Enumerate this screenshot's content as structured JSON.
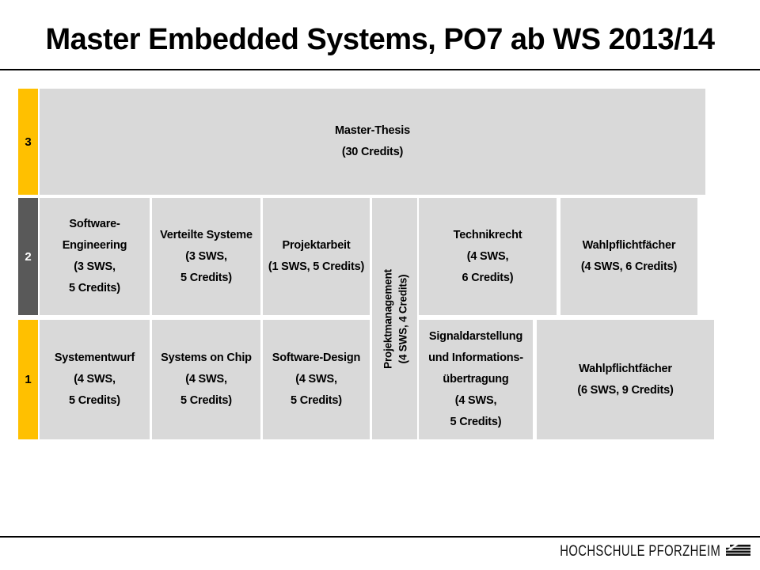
{
  "title": "Master Embedded Systems, PO7 ab WS 2013/14",
  "colors": {
    "accent_yellow": "#FFC000",
    "dark_gray": "#595959",
    "block_gray": "#D9D9D9"
  },
  "semesters": {
    "s3": "3",
    "s2": "2",
    "s1": "1"
  },
  "blocks": {
    "thesis": {
      "lines": [
        "Master-Thesis",
        "(30 Credits)"
      ]
    },
    "software_engineering": {
      "lines": [
        "Software-",
        "Engineering",
        "(3 SWS,",
        "5 Credits)"
      ]
    },
    "verteilte_systeme": {
      "lines": [
        "Verteilte Systeme",
        "(3 SWS,",
        "5 Credits)"
      ]
    },
    "projektarbeit": {
      "lines": [
        "Projektarbeit",
        "(1 SWS, 5 Credits)"
      ]
    },
    "projektmanagement": {
      "lines": [
        "Projektmanagement",
        "(4 SWS, 4 Credits)"
      ]
    },
    "technikrecht": {
      "lines": [
        "Technikrecht",
        "(4 SWS,",
        "6 Credits)"
      ]
    },
    "wahlpflicht_sem2": {
      "lines": [
        "Wahlpflichtfächer",
        "(4 SWS, 6 Credits)"
      ]
    },
    "systementwurf": {
      "lines": [
        "Systementwurf",
        "(4 SWS,",
        "5 Credits)"
      ]
    },
    "systems_on_chip": {
      "lines": [
        "Systems on Chip",
        "(4 SWS,",
        "5 Credits)"
      ]
    },
    "software_design": {
      "lines": [
        "Software-Design",
        "(4 SWS,",
        "5 Credits)"
      ]
    },
    "signaldarstellung": {
      "lines": [
        "Signaldarstellung",
        "und Informations-",
        "übertragung",
        "(4 SWS,",
        "5 Credits)"
      ]
    },
    "wahlpflicht_sem1": {
      "lines": [
        "Wahlpflichtfächer",
        "(6 SWS, 9 Credits)"
      ]
    }
  },
  "footer": {
    "institution": "HOCHSCHULE PFORZHEIM"
  }
}
